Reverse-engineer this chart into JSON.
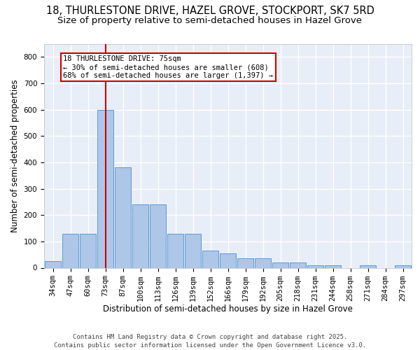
{
  "title_line1": "18, THURLESTONE DRIVE, HAZEL GROVE, STOCKPORT, SK7 5RD",
  "title_line2": "Size of property relative to semi-detached houses in Hazel Grove",
  "xlabel": "Distribution of semi-detached houses by size in Hazel Grove",
  "ylabel": "Number of semi-detached properties",
  "categories": [
    "34sqm",
    "47sqm",
    "60sqm",
    "73sqm",
    "87sqm",
    "100sqm",
    "113sqm",
    "126sqm",
    "139sqm",
    "152sqm",
    "166sqm",
    "179sqm",
    "192sqm",
    "205sqm",
    "218sqm",
    "231sqm",
    "244sqm",
    "258sqm",
    "271sqm",
    "284sqm",
    "297sqm"
  ],
  "values": [
    25,
    130,
    130,
    600,
    380,
    240,
    240,
    130,
    130,
    65,
    55,
    35,
    35,
    20,
    20,
    8,
    8,
    0,
    8,
    0,
    8
  ],
  "bar_color": "#aec6e8",
  "bar_edge_color": "#5b9bd5",
  "vline_x_index": 3,
  "vline_color": "#cc0000",
  "annotation_text": "18 THURLESTONE DRIVE: 75sqm\n← 30% of semi-detached houses are smaller (608)\n68% of semi-detached houses are larger (1,397) →",
  "annotation_box_facecolor": "#ffffff",
  "annotation_box_edgecolor": "#cc0000",
  "ylim": [
    0,
    850
  ],
  "yticks": [
    0,
    100,
    200,
    300,
    400,
    500,
    600,
    700,
    800
  ],
  "plot_bg_color": "#e8eef7",
  "grid_color": "#ffffff",
  "footer_text": "Contains HM Land Registry data © Crown copyright and database right 2025.\nContains public sector information licensed under the Open Government Licence v3.0.",
  "title_fontsize": 10.5,
  "subtitle_fontsize": 9.5,
  "axis_label_fontsize": 8.5,
  "tick_fontsize": 7.5,
  "annotation_fontsize": 7.5,
  "footer_fontsize": 6.5
}
